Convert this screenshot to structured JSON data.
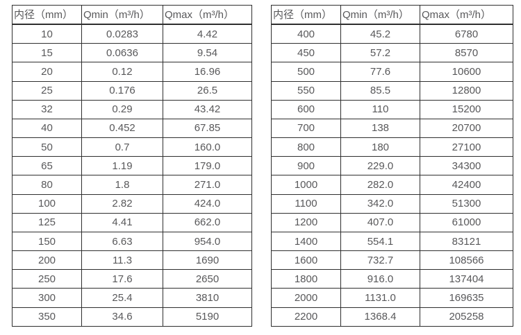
{
  "page": {
    "background": "#ffffff",
    "border_color": "#2e2e2e",
    "text_color": "#58585a"
  },
  "tables": [
    {
      "id": "left",
      "headers": [
        "内径（mm）",
        "Qmin（m³/h）",
        "Qmax（m³/h）"
      ],
      "rows": [
        [
          "10",
          "0.0283",
          "4.42"
        ],
        [
          "15",
          "0.0636",
          "9.54"
        ],
        [
          "20",
          "0.12",
          "16.96"
        ],
        [
          "25",
          "0.176",
          "26.5"
        ],
        [
          "32",
          "0.29",
          "43.42"
        ],
        [
          "40",
          "0.452",
          "67.85"
        ],
        [
          "50",
          "0.7",
          "160.0"
        ],
        [
          "65",
          "1.19",
          "179.0"
        ],
        [
          "80",
          "1.8",
          "271.0"
        ],
        [
          "100",
          "2.82",
          "424.0"
        ],
        [
          "125",
          "4.41",
          "662.0"
        ],
        [
          "150",
          "6.63",
          "954.0"
        ],
        [
          "200",
          "11.3",
          "1690"
        ],
        [
          "250",
          "17.6",
          "2650"
        ],
        [
          "300",
          "25.4",
          "3810"
        ],
        [
          "350",
          "34.6",
          "5190"
        ]
      ]
    },
    {
      "id": "right",
      "headers": [
        "内径（mm）",
        "Qmin（m³/h）",
        "Qmax（m³/h）"
      ],
      "rows": [
        [
          "400",
          "45.2",
          "6780"
        ],
        [
          "450",
          "57.2",
          "8570"
        ],
        [
          "500",
          "77.6",
          "10600"
        ],
        [
          "550",
          "85.5",
          "12800"
        ],
        [
          "600",
          "110",
          "15200"
        ],
        [
          "700",
          "138",
          "20700"
        ],
        [
          "800",
          "180",
          "27100"
        ],
        [
          "900",
          "229.0",
          "34300"
        ],
        [
          "1000",
          "282.0",
          "42400"
        ],
        [
          "1100",
          "342.0",
          "51300"
        ],
        [
          "1200",
          "407.0",
          "61000"
        ],
        [
          "1400",
          "554.1",
          "83121"
        ],
        [
          "1600",
          "732.7",
          "108566"
        ],
        [
          "1800",
          "916.0",
          "137404"
        ],
        [
          "2000",
          "1131.0",
          "169635"
        ],
        [
          "2200",
          "1368.4",
          "205258"
        ]
      ]
    }
  ]
}
